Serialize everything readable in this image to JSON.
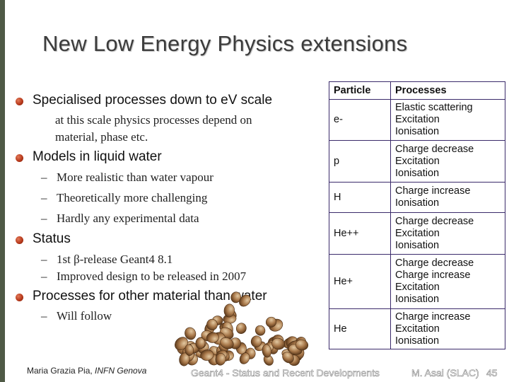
{
  "slide": {
    "title": "New Low Energy Physics extensions"
  },
  "bullets": [
    {
      "text": "Specialised processes down to eV scale",
      "subs": [
        {
          "text": "at this scale physics processes depend on"
        },
        {
          "text": "material, phase etc."
        }
      ]
    },
    {
      "text": "Models in liquid water",
      "subs": [
        {
          "text": "More realistic than water vapour"
        },
        {
          "text": "Theoretically more challenging"
        },
        {
          "text": "Hardly any experimental data"
        }
      ]
    },
    {
      "text": "Status",
      "subs": [
        {
          "text": "1st β-release Geant4 8.1"
        },
        {
          "text": "Improved design to be released in 2007"
        }
      ]
    },
    {
      "text": "Processes for other material than water",
      "subs": [
        {
          "text": "Will follow"
        }
      ]
    }
  ],
  "dash_char": "–",
  "table": {
    "headers": [
      "Particle",
      "Processes"
    ],
    "rows": [
      {
        "particle": "e-",
        "processes": [
          "Elastic scattering",
          "Excitation",
          "Ionisation"
        ]
      },
      {
        "particle": "p",
        "processes": [
          "Charge decrease",
          "Excitation",
          "Ionisation"
        ]
      },
      {
        "particle": "H",
        "processes": [
          "Charge increase",
          "Ionisation"
        ]
      },
      {
        "particle": "He++",
        "processes": [
          "Charge decrease",
          "Excitation",
          "Ionisation"
        ]
      },
      {
        "particle": "He+",
        "processes": [
          "Charge decrease",
          "Charge increase",
          "Excitation",
          "Ionisation"
        ]
      },
      {
        "particle": "He",
        "processes": [
          "Charge increase",
          "Excitation",
          "Ionisation"
        ]
      }
    ]
  },
  "footer": {
    "author_name": "Maria Grazia Pia, ",
    "author_affil": "INFN Genova",
    "center": "Geant4 - Status and Recent Developments",
    "presenter": "M. Asai (SLAC)",
    "page": "45"
  },
  "colors": {
    "bullet": "#b83a1c",
    "table_border": "#3a2a6a",
    "left_rule": "#4f5a46"
  },
  "images": {
    "seeds": "pile-of-seeds"
  }
}
